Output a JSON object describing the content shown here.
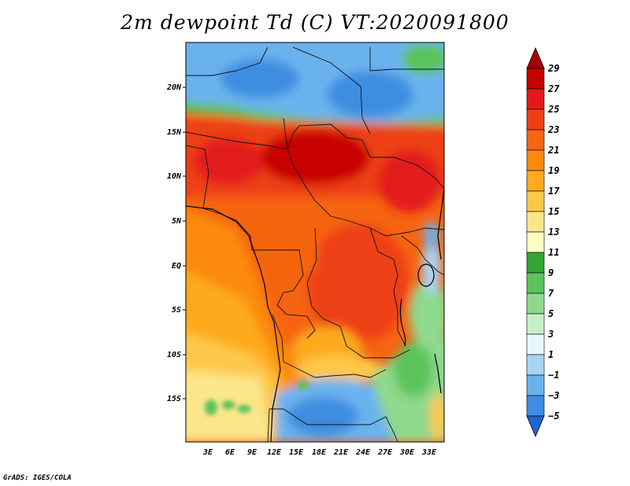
{
  "title": "2m dewpoint Td (C) VT:2020091800",
  "credit": "GrADS: IGES/COLA",
  "map": {
    "lat_labels": [
      "20N",
      "15N",
      "10N",
      "5N",
      "EQ",
      "5S",
      "10S",
      "15S"
    ],
    "lon_labels": [
      "3E",
      "6E",
      "9E",
      "12E",
      "15E",
      "18E",
      "21E",
      "24E",
      "27E",
      "30E",
      "33E"
    ]
  },
  "colorbar": {
    "labels": [
      "29",
      "27",
      "25",
      "23",
      "21",
      "19",
      "17",
      "15",
      "13",
      "11",
      "9",
      "7",
      "5",
      "3",
      "1",
      "−1",
      "−3",
      "−5"
    ],
    "colors": [
      "#a50000",
      "#c80000",
      "#e31a1c",
      "#ee3f14",
      "#f66411",
      "#fb8a0e",
      "#fdaa1f",
      "#fdc84a",
      "#fce68b",
      "#fffcc4",
      "#33a532",
      "#5bc35a",
      "#8ed98d",
      "#c8f0c8",
      "#e7f6fc",
      "#a9d4f5",
      "#6ab2ee",
      "#3d8de0",
      "#1f66cf"
    ]
  }
}
